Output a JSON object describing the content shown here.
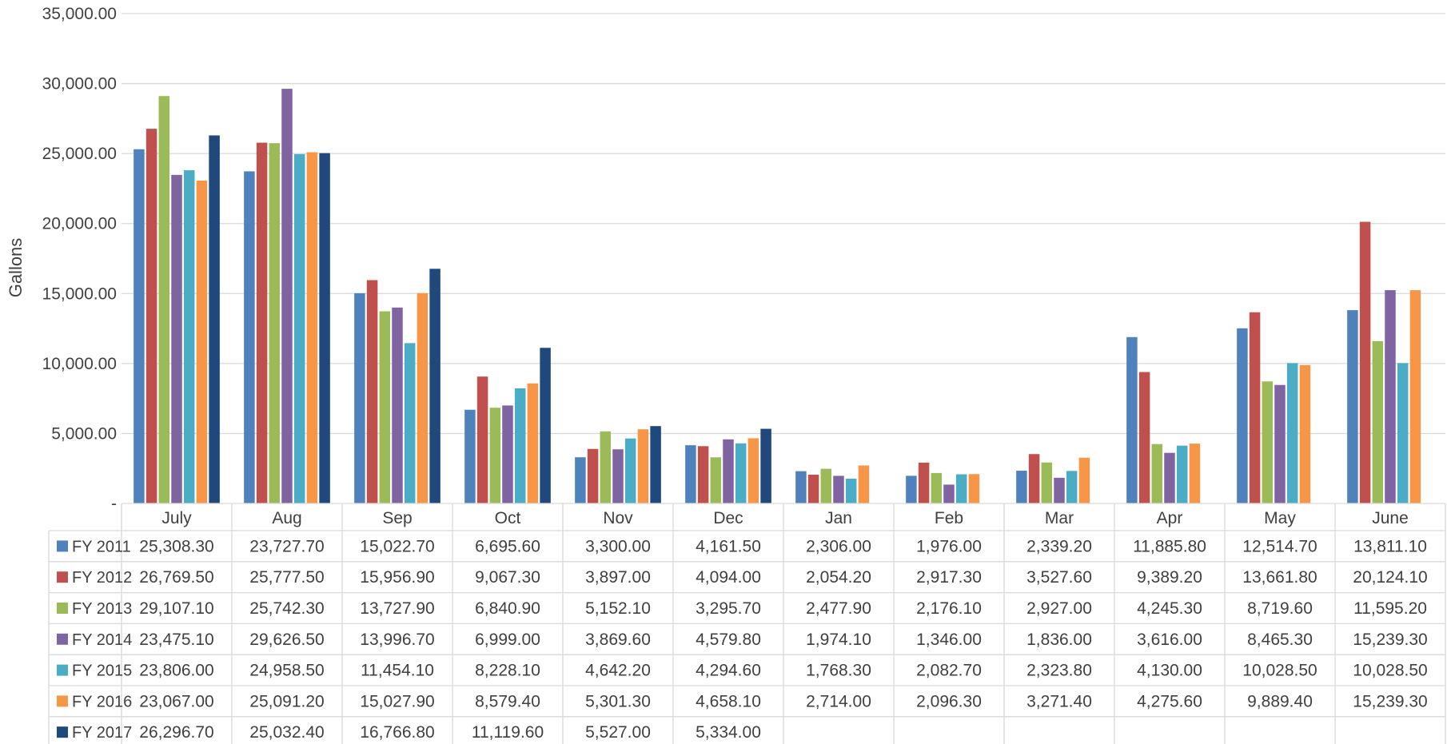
{
  "chart_data": {
    "type": "bar",
    "ylabel": "Gallons",
    "ylim": [
      0,
      35000
    ],
    "y_ticks": [
      {
        "value": 0,
        "label": "-"
      },
      {
        "value": 5000,
        "label": "5,000.00"
      },
      {
        "value": 10000,
        "label": "10,000.00"
      },
      {
        "value": 15000,
        "label": "15,000.00"
      },
      {
        "value": 20000,
        "label": "20,000.00"
      },
      {
        "value": 25000,
        "label": "25,000.00"
      },
      {
        "value": 30000,
        "label": "30,000.00"
      },
      {
        "value": 35000,
        "label": "35,000.00"
      }
    ],
    "grid": true,
    "legend": "data-table",
    "categories": [
      "July",
      "Aug",
      "Sep",
      "Oct",
      "Nov",
      "Dec",
      "Jan",
      "Feb",
      "Mar",
      "Apr",
      "May",
      "June"
    ],
    "series": [
      {
        "name": "FY 2011",
        "color": "#4F81BD",
        "values": [
          25308.3,
          23727.7,
          15022.7,
          6695.6,
          3300.0,
          4161.5,
          2306.0,
          1976.0,
          2339.2,
          11885.8,
          12514.7,
          13811.1
        ],
        "labels": [
          "25,308.30",
          "23,727.70",
          "15,022.70",
          "6,695.60",
          "3,300.00",
          "4,161.50",
          "2,306.00",
          "1,976.00",
          "2,339.20",
          "11,885.80",
          "12,514.70",
          "13,811.10"
        ]
      },
      {
        "name": "FY 2012",
        "color": "#C0504D",
        "values": [
          26769.5,
          25777.5,
          15956.9,
          9067.3,
          3897.0,
          4094.0,
          2054.2,
          2917.3,
          3527.6,
          9389.2,
          13661.8,
          20124.1
        ],
        "labels": [
          "26,769.50",
          "25,777.50",
          "15,956.90",
          "9,067.30",
          "3,897.00",
          "4,094.00",
          "2,054.20",
          "2,917.30",
          "3,527.60",
          "9,389.20",
          "13,661.80",
          "20,124.10"
        ]
      },
      {
        "name": "FY 2013",
        "color": "#9BBB59",
        "values": [
          29107.1,
          25742.3,
          13727.9,
          6840.9,
          5152.1,
          3295.7,
          2477.9,
          2176.1,
          2927.0,
          4245.3,
          8719.6,
          11595.2
        ],
        "labels": [
          "29,107.10",
          "25,742.30",
          "13,727.90",
          "6,840.90",
          "5,152.10",
          "3,295.70",
          "2,477.90",
          "2,176.10",
          "2,927.00",
          "4,245.30",
          "8,719.60",
          "11,595.20"
        ]
      },
      {
        "name": "FY 2014",
        "color": "#8064A2",
        "values": [
          23475.1,
          29626.5,
          13996.7,
          6999.0,
          3869.6,
          4579.8,
          1974.1,
          1346.0,
          1836.0,
          3616.0,
          8465.3,
          15239.3
        ],
        "labels": [
          "23,475.10",
          "29,626.50",
          "13,996.70",
          "6,999.00",
          "3,869.60",
          "4,579.80",
          "1,974.10",
          "1,346.00",
          "1,836.00",
          "3,616.00",
          "8,465.30",
          "15,239.30"
        ]
      },
      {
        "name": "FY 2015",
        "color": "#4BACC6",
        "values": [
          23806.0,
          24958.5,
          11454.1,
          8228.1,
          4642.2,
          4294.6,
          1768.3,
          2082.7,
          2323.8,
          4130.0,
          10028.5,
          10028.5
        ],
        "labels": [
          "23,806.00",
          "24,958.50",
          "11,454.10",
          "8,228.10",
          "4,642.20",
          "4,294.60",
          "1,768.30",
          "2,082.70",
          "2,323.80",
          "4,130.00",
          "10,028.50",
          "10,028.50"
        ]
      },
      {
        "name": "FY 2016",
        "color": "#F79646",
        "values": [
          23067.0,
          25091.2,
          15027.9,
          8579.4,
          5301.3,
          4658.1,
          2714.0,
          2096.3,
          3271.4,
          4275.6,
          9889.4,
          15239.3
        ],
        "labels": [
          "23,067.00",
          "25,091.20",
          "15,027.90",
          "8,579.40",
          "5,301.30",
          "4,658.10",
          "2,714.00",
          "2,096.30",
          "3,271.40",
          "4,275.60",
          "9,889.40",
          "15,239.30"
        ]
      },
      {
        "name": "FY 2017",
        "color": "#1F497D",
        "values": [
          26296.7,
          25032.4,
          16766.8,
          11119.6,
          5527.0,
          5334.0,
          null,
          null,
          null,
          null,
          null,
          null
        ],
        "labels": [
          "26,296.70",
          "25,032.40",
          "16,766.80",
          "11,119.60",
          "5,527.00",
          "5,334.00",
          "",
          "",
          "",
          "",
          "",
          ""
        ]
      }
    ]
  }
}
